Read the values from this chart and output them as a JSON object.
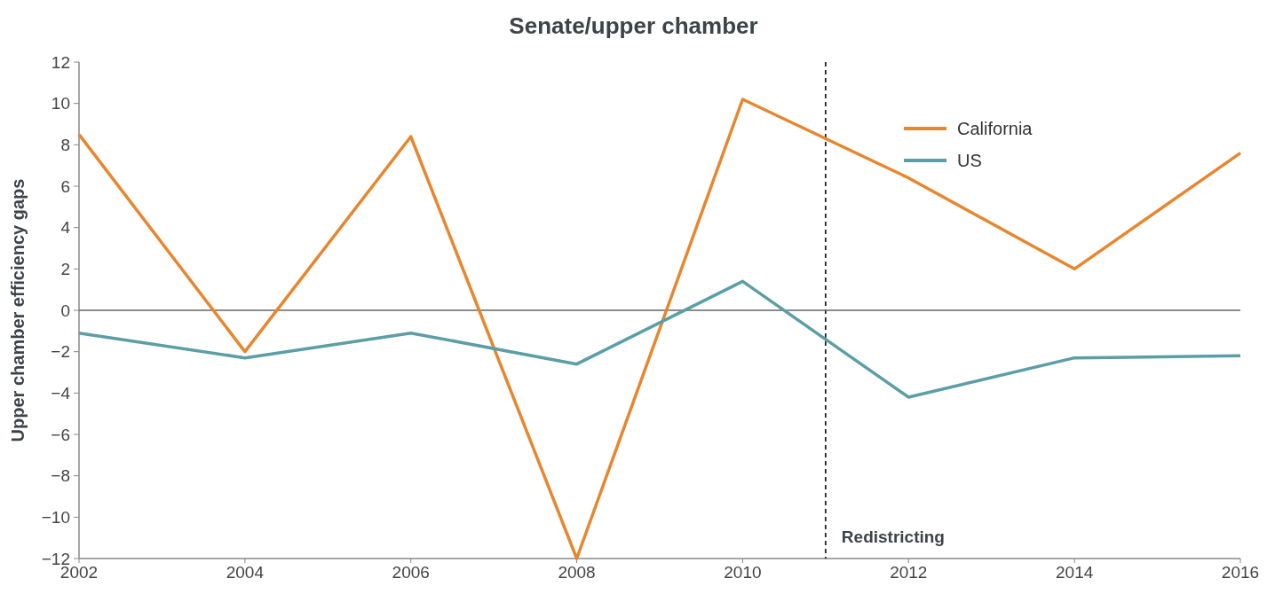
{
  "chart_data": {
    "type": "line",
    "title": "Senate/upper chamber",
    "ylabel": "Upper chamber efficiency gaps",
    "x": [
      2002,
      2004,
      2006,
      2008,
      2010,
      2012,
      2014,
      2016
    ],
    "series": [
      {
        "name": "California",
        "color": "#e8862e",
        "values": [
          8.5,
          -2,
          8.4,
          -12,
          10.2,
          6.4,
          2,
          7.6
        ]
      },
      {
        "name": "US",
        "color": "#5b9ea6",
        "values": [
          -1.1,
          -2.3,
          -1.1,
          -2.6,
          1.4,
          -4.2,
          -2.3,
          -2.2
        ]
      }
    ],
    "xlim": [
      2002,
      2016
    ],
    "xticks": [
      2002,
      2004,
      2006,
      2008,
      2010,
      2012,
      2014,
      2016
    ],
    "ylim": [
      -12,
      12
    ],
    "yticks": [
      {
        "value": -12,
        "label": "−12"
      },
      {
        "value": -10,
        "label": "−10"
      },
      {
        "value": -8,
        "label": "−8"
      },
      {
        "value": -6,
        "label": "−6"
      },
      {
        "value": -4,
        "label": "−4"
      },
      {
        "value": -2,
        "label": "−2"
      },
      0,
      2,
      4,
      6,
      8,
      10,
      12
    ],
    "ref_lines": [
      {
        "axis": "x",
        "value": 2011,
        "label": "Redistricting",
        "color": "#222222",
        "line_style": "dashed"
      },
      {
        "axis": "y",
        "value": 0,
        "label": null,
        "color": "#666666",
        "line_style": "solid"
      }
    ],
    "grid": false,
    "legend": "top right",
    "marker": "none",
    "line_style": "solid"
  }
}
